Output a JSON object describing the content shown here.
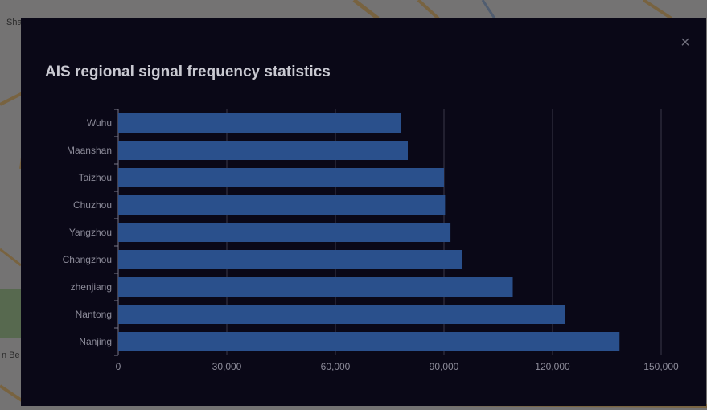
{
  "map": {
    "labels": [
      "Sha",
      "n Be"
    ]
  },
  "modal": {
    "close_glyph": "×",
    "close_icon": "close-icon"
  },
  "chart_data": {
    "type": "bar",
    "orientation": "horizontal",
    "title": "AIS regional signal frequency statistics",
    "categories": [
      "Wuhu",
      "Maanshan",
      "Taizhou",
      "Chuzhou",
      "Yangzhou",
      "Changzhou",
      "zhenjiang",
      "Nantong",
      "Nanjing"
    ],
    "values": [
      78000,
      80000,
      90000,
      90300,
      91800,
      95000,
      109000,
      123500,
      138500
    ],
    "xlim": [
      0,
      150000
    ],
    "xticks": [
      0,
      30000,
      60000,
      90000,
      120000,
      150000
    ],
    "xtick_labels": [
      "0",
      "30,000",
      "60,000",
      "90,000",
      "120,000",
      "150,000"
    ],
    "grid": true,
    "legend": "none",
    "bar_color": "#2a508c",
    "background_color": "#0a0817",
    "text_color": "#8c8b99",
    "grid_color": "#3a3948"
  }
}
